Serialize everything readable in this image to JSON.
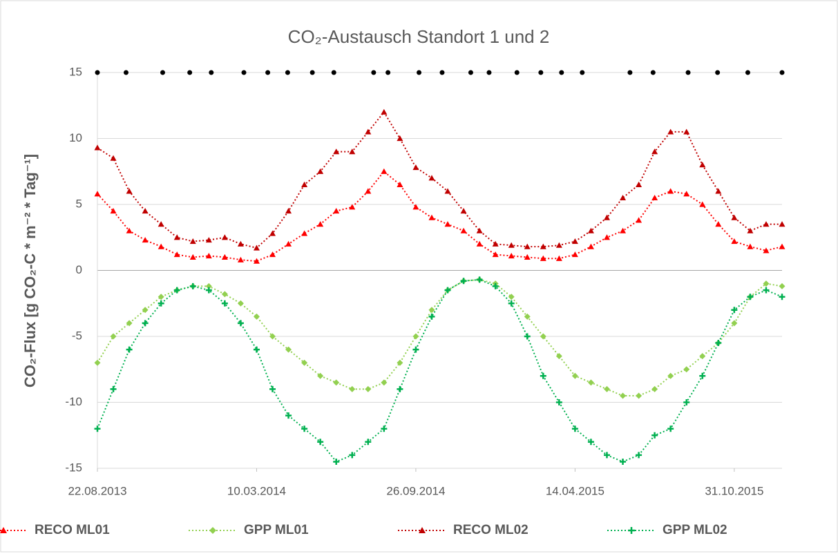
{
  "chart_data": {
    "type": "line",
    "title": "CO₂-Austausch Standort 1 und 2",
    "y_label": "CO₂-Flux [g CO₂-C * m⁻² * Tag⁻¹]",
    "x": [
      "22.08.2013",
      "11.09.2013",
      "01.10.2013",
      "21.10.2013",
      "10.11.2013",
      "30.11.2013",
      "20.12.2013",
      "09.01.2014",
      "29.01.2014",
      "18.02.2014",
      "10.03.2014",
      "30.03.2014",
      "19.04.2014",
      "09.05.2014",
      "29.05.2014",
      "18.06.2014",
      "08.07.2014",
      "28.07.2014",
      "17.08.2014",
      "06.09.2014",
      "26.09.2014",
      "16.10.2014",
      "05.11.2014",
      "25.11.2014",
      "15.12.2014",
      "04.01.2015",
      "24.01.2015",
      "13.02.2015",
      "05.03.2015",
      "25.03.2015",
      "14.04.2015",
      "04.05.2015",
      "24.05.2015",
      "13.06.2015",
      "03.07.2015",
      "23.07.2015",
      "12.08.2015",
      "01.09.2015",
      "21.09.2015",
      "11.10.2015",
      "31.10.2015",
      "20.11.2015",
      "10.12.2015",
      "30.12.2015"
    ],
    "series": [
      {
        "name": "RECO ML01",
        "color": "#ff0000",
        "marker": "triangle",
        "values": [
          5.8,
          4.5,
          3.0,
          2.3,
          1.8,
          1.2,
          1.0,
          1.1,
          1.0,
          0.8,
          0.7,
          1.2,
          2.0,
          2.8,
          3.5,
          4.5,
          4.8,
          6.0,
          7.5,
          6.5,
          4.8,
          4.0,
          3.5,
          3.0,
          2.0,
          1.2,
          1.1,
          1.0,
          0.9,
          0.9,
          1.2,
          1.8,
          2.5,
          3.0,
          3.8,
          5.5,
          6.0,
          5.8,
          5.0,
          3.5,
          2.2,
          1.8,
          1.5,
          1.8
        ]
      },
      {
        "name": "GPP ML01",
        "color": "#92d050",
        "marker": "diamond",
        "values": [
          -7,
          -5,
          -4,
          -3,
          -2,
          -1.5,
          -1.2,
          -1.2,
          -1.8,
          -2.5,
          -3.5,
          -5,
          -6,
          -7,
          -8,
          -8.5,
          -9,
          -9,
          -8.5,
          -7,
          -5,
          -3,
          -1.5,
          -0.8,
          -0.7,
          -1,
          -2,
          -3.5,
          -5,
          -6.5,
          -8,
          -8.5,
          -9,
          -9.5,
          -9.5,
          -9,
          -8,
          -7.5,
          -6.5,
          -5.5,
          -4,
          -2,
          -1,
          -1.2
        ]
      },
      {
        "name": "RECO ML02",
        "color": "#c00000",
        "marker": "triangle",
        "values": [
          9.3,
          8.5,
          6.0,
          4.5,
          3.5,
          2.5,
          2.2,
          2.3,
          2.5,
          2.0,
          1.7,
          2.8,
          4.5,
          6.5,
          7.5,
          9.0,
          9.0,
          10.5,
          12.0,
          10.0,
          7.8,
          7.0,
          6.0,
          4.5,
          3.0,
          2.0,
          1.9,
          1.8,
          1.8,
          1.9,
          2.2,
          3.0,
          4.0,
          5.5,
          6.5,
          9.0,
          10.5,
          10.5,
          8.0,
          6.0,
          4.0,
          3.0,
          3.5,
          3.5
        ]
      },
      {
        "name": "GPP ML02",
        "color": "#00b050",
        "marker": "cross",
        "values": [
          -12,
          -9,
          -6,
          -4,
          -2.5,
          -1.5,
          -1.2,
          -1.5,
          -2.5,
          -4,
          -6,
          -9,
          -11,
          -12,
          -13,
          -14.5,
          -14,
          -13,
          -12,
          -9,
          -6,
          -3.5,
          -1.5,
          -0.8,
          -0.7,
          -1.2,
          -2.5,
          -5,
          -8,
          -10,
          -12,
          -13,
          -14,
          -14.5,
          -14,
          -12.5,
          -12,
          -10,
          -8,
          -5.5,
          -3,
          -2,
          -1.5,
          -2
        ]
      }
    ],
    "markers": {
      "color": "#000000",
      "x": [
        "22.08.2013",
        "27.09.2013",
        "12.11.2013",
        "16.12.2013",
        "12.01.2014",
        "22.02.2014",
        "24.03.2014",
        "18.04.2014",
        "19.05.2014",
        "15.06.2014",
        "04.08.2014",
        "22.08.2014",
        "30.09.2014",
        "29.10.2014",
        "04.12.2014",
        "27.12.2014",
        "31.01.2015",
        "02.03.2015",
        "28.03.2015",
        "23.04.2015",
        "22.06.2015",
        "21.07.2015",
        "03.09.2015",
        "10.10.2015",
        "17.11.2015",
        "30.12.2015"
      ],
      "values": [
        15,
        15,
        15,
        15,
        15,
        15,
        15,
        15,
        15,
        15,
        15,
        15,
        15,
        15,
        15,
        15,
        15,
        15,
        15,
        15,
        15,
        15,
        15,
        15,
        15,
        15
      ]
    },
    "xlim": [
      "22.08.2013",
      "30.12.2015"
    ],
    "xticks": [
      "22.08.2013",
      "10.03.2014",
      "26.09.2014",
      "14.04.2015",
      "31.10.2015"
    ],
    "ylim": [
      -15,
      15
    ],
    "yticks": [
      -15,
      -10,
      -5,
      0,
      5,
      10,
      15
    ],
    "grid": true,
    "legend": "bottom"
  }
}
